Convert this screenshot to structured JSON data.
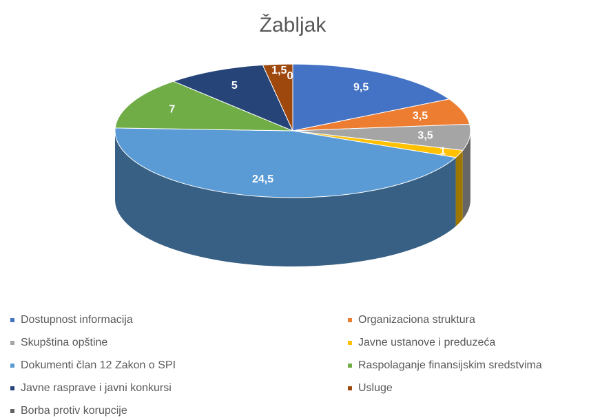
{
  "chart_data": {
    "type": "pie3d",
    "title": "Žabljak",
    "categories": [
      "Dostupnost informacija",
      "Organizaciona struktura",
      "Skupština opštine",
      "Javne ustanove i preduzeća",
      "Dokumenti član 12 Zakon o SPI",
      "Raspolaganje finansijskim sredstvima",
      "Javne rasprave i javni konkursi",
      "Usluge",
      "Borba protiv korupcije"
    ],
    "values": [
      9.5,
      3.5,
      3.5,
      1,
      24.5,
      7,
      5,
      1.5,
      0
    ],
    "value_labels": [
      "9,5",
      "3,5",
      "3,5",
      "1",
      "24,5",
      "7",
      "5",
      "1,5",
      "0"
    ],
    "colors": [
      "#4472c4",
      "#ed7d31",
      "#a5a5a5",
      "#ffc000",
      "#5b9bd5",
      "#70ad47",
      "#264478",
      "#9e480e",
      "#636363"
    ],
    "legend": "bottom"
  }
}
